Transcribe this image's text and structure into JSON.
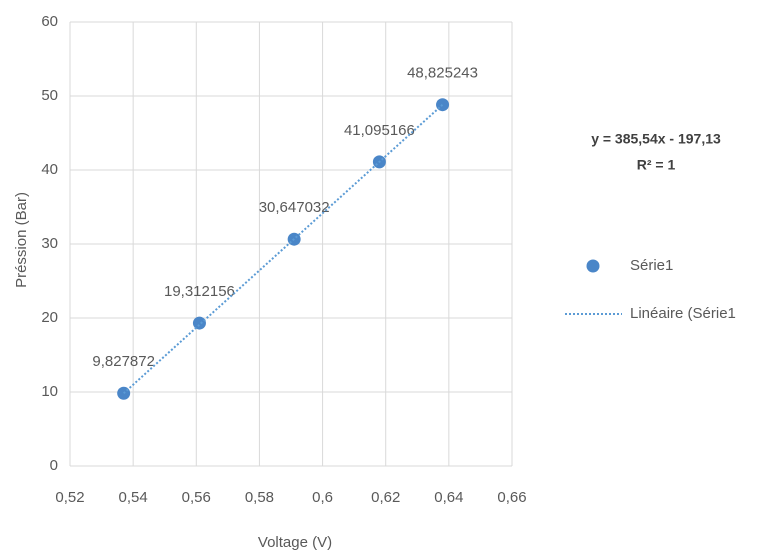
{
  "chart_data": {
    "type": "scatter",
    "x_label": "Voltage (V)",
    "y_label": "Préssion (Bar)",
    "xlim": [
      0.52,
      0.66
    ],
    "xticks": [
      {
        "value": 0.52,
        "label": "0,52"
      },
      {
        "value": 0.54,
        "label": "0,54"
      },
      {
        "value": 0.56,
        "label": "0,56"
      },
      {
        "value": 0.58,
        "label": "0,58"
      },
      {
        "value": 0.6,
        "label": "0,6"
      },
      {
        "value": 0.62,
        "label": "0,62"
      },
      {
        "value": 0.64,
        "label": "0,64"
      },
      {
        "value": 0.66,
        "label": "0,66"
      }
    ],
    "ylim": [
      0,
      60
    ],
    "yticks": [
      0,
      10,
      20,
      30,
      40,
      50,
      60
    ],
    "grid": true,
    "legend": "right",
    "series": [
      {
        "name": "Série1",
        "type": "scatter",
        "color": "#4a86c8",
        "x": [
          0.537,
          0.561,
          0.591,
          0.618,
          0.638
        ],
        "values": [
          9.827872,
          19.312156,
          30.647032,
          41.095166,
          48.825243
        ],
        "value_labels": [
          "9,827872",
          "19,312156",
          "30,647032",
          "41,095166",
          "48,825243"
        ]
      },
      {
        "name": "Linéaire (Série1",
        "type": "line",
        "color": "#5b9bd5",
        "x": [
          0.537,
          0.638
        ],
        "values": [
          9.827872,
          48.825243
        ]
      }
    ],
    "annotations": [
      "y = 385,54x - 197,13",
      "R² = 1"
    ]
  }
}
